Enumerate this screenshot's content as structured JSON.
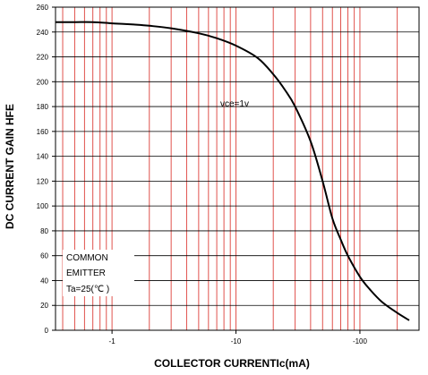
{
  "chart_data": {
    "type": "line",
    "title": "",
    "xlabel": "COLLECTOR CURRENTIc(mA)",
    "ylabel": "DC CURRENT GAIN  HFE",
    "x_scale": "log",
    "x_direction": "negative",
    "xlim": [
      -0.35,
      -300
    ],
    "ylim": [
      0,
      260
    ],
    "x_ticks": [
      {
        "value": -1,
        "label": "-1"
      },
      {
        "value": -10,
        "label": "-10"
      },
      {
        "value": -100,
        "label": "-100"
      }
    ],
    "y_ticks": [
      0,
      20,
      40,
      60,
      80,
      100,
      120,
      140,
      160,
      180,
      200,
      220,
      240,
      260
    ],
    "grid": true,
    "grid_color": "#e0524d",
    "line_color": "#000000",
    "series": [
      {
        "name": "vce=1v",
        "x": [
          -0.35,
          -0.5,
          -0.7,
          -1,
          -1.5,
          -2,
          -3,
          -5,
          -7,
          -10,
          -15,
          -20,
          -25,
          -30,
          -40,
          -50,
          -60,
          -70,
          -80,
          -100,
          -120,
          -150,
          -200,
          -250
        ],
        "y": [
          248,
          248,
          248,
          247,
          246,
          245,
          243,
          239,
          235,
          229,
          219,
          206,
          193,
          180,
          152,
          120,
          90,
          73,
          60,
          43,
          33,
          23,
          14,
          8
        ]
      }
    ],
    "annotations": [
      {
        "text": "vce=1v"
      },
      {
        "text": "COMMON"
      },
      {
        "text": "EMITTER"
      },
      {
        "text": "Ta=25(℃ )"
      }
    ]
  }
}
